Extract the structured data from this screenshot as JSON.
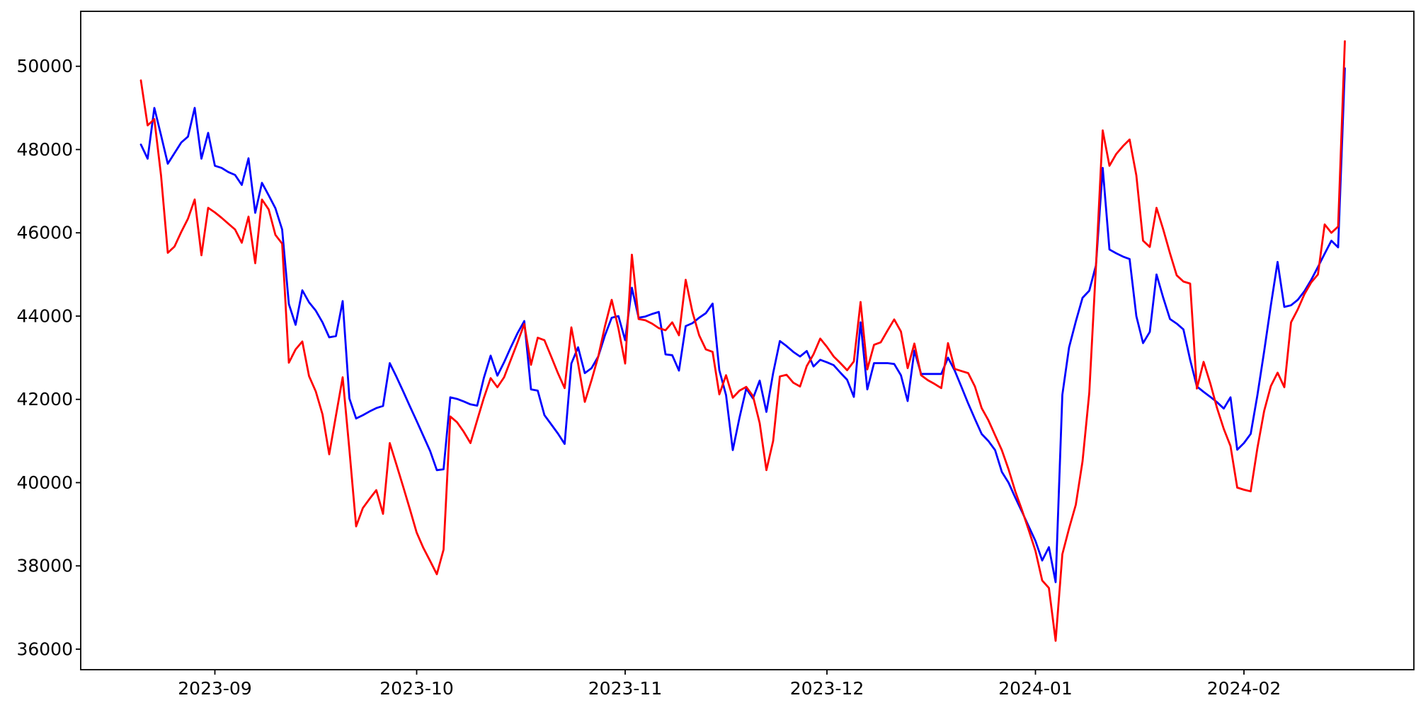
{
  "figure": {
    "background_color": "#ffffff",
    "title": "",
    "legend": "none",
    "grid": false
  },
  "chart_data": {
    "type": "line",
    "title": "",
    "xlabel": "",
    "ylabel": "",
    "x_start_date": "2023-08-21",
    "x_end_date": "2024-02-16",
    "x_step_days": 1,
    "n_points": 180,
    "x_tick_labels": [
      "2023-09",
      "2023-10",
      "2023-11",
      "2023-12",
      "2024-01",
      "2024-02"
    ],
    "y_tick_labels": [
      "36000",
      "38000",
      "40000",
      "42000",
      "44000",
      "46000",
      "48000",
      "50000"
    ],
    "y_tick_values": [
      36000,
      38000,
      40000,
      42000,
      44000,
      46000,
      48000,
      50000
    ],
    "ylim": [
      35507,
      51320
    ],
    "axis_color": "#000000",
    "series": [
      {
        "name": "blue-series",
        "color": "#0000ff",
        "values": [
          48120,
          47780,
          49000,
          48340,
          47660,
          47915,
          48170,
          48310,
          49000,
          47780,
          48400,
          47610,
          47560,
          47460,
          47390,
          47150,
          47790,
          46480,
          47200,
          46900,
          46590,
          46080,
          44290,
          43790,
          44620,
          44330,
          44130,
          43850,
          43490,
          43520,
          44360,
          42020,
          41540,
          41620,
          41710,
          41790,
          41840,
          42870,
          42540,
          42190,
          41830,
          41480,
          41120,
          40760,
          40300,
          40320,
          42050,
          42010,
          41950,
          41880,
          41850,
          42520,
          43050,
          42570,
          42890,
          43250,
          43590,
          43880,
          42240,
          42210,
          41620,
          41400,
          41180,
          40930,
          42860,
          43250,
          42630,
          42750,
          43030,
          43540,
          43960,
          44000,
          43420,
          44680,
          43960,
          43990,
          44050,
          44100,
          43080,
          43060,
          42690,
          43760,
          43830,
          43960,
          44070,
          44300,
          42700,
          42100,
          40780,
          41560,
          42260,
          42020,
          42450,
          41700,
          42630,
          43400,
          43280,
          43140,
          43030,
          43160,
          42790,
          42950,
          42890,
          42820,
          42640,
          42470,
          42060,
          43850,
          42240,
          42870,
          42870,
          42870,
          42850,
          42580,
          41960,
          43170,
          42610,
          42610,
          42610,
          42610,
          43000,
          42690,
          42300,
          41900,
          41530,
          41170,
          41000,
          40780,
          40260,
          40000,
          39640,
          39300,
          38950,
          38600,
          38130,
          38450,
          37610,
          42110,
          43250,
          43870,
          44440,
          44610,
          45220,
          47560,
          45600,
          45510,
          45430,
          45370,
          44000,
          43350,
          43620,
          45000,
          44440,
          43930,
          43820,
          43680,
          42950,
          42310,
          42180,
          42060,
          41930,
          41780,
          42050,
          40790,
          40950,
          41170,
          42100,
          43150,
          44260,
          45300,
          44220,
          44260,
          44390,
          44600,
          44870,
          45180,
          45500,
          45810,
          45650,
          49950
        ]
      },
      {
        "name": "red-series",
        "color": "#ff0000",
        "values": [
          49660,
          48580,
          48730,
          47370,
          45520,
          45670,
          46020,
          46340,
          46800,
          45460,
          46600,
          46490,
          46360,
          46220,
          46080,
          45760,
          46390,
          45270,
          46800,
          46560,
          45950,
          45740,
          42880,
          43200,
          43390,
          42560,
          42190,
          41640,
          40680,
          41610,
          42530,
          40790,
          38950,
          39390,
          39610,
          39820,
          39250,
          40950,
          40430,
          39900,
          39360,
          38800,
          38430,
          38120,
          37800,
          38390,
          41590,
          41450,
          41220,
          40950,
          41500,
          42040,
          42510,
          42290,
          42530,
          42950,
          43370,
          43810,
          42830,
          43480,
          43420,
          43030,
          42630,
          42270,
          43730,
          42860,
          41940,
          42460,
          43030,
          43760,
          44390,
          43700,
          42860,
          45475,
          43930,
          43900,
          43820,
          43710,
          43660,
          43850,
          43540,
          44870,
          44100,
          43540,
          43200,
          43140,
          42120,
          42580,
          42040,
          42210,
          42300,
          42080,
          41430,
          40300,
          41000,
          42550,
          42590,
          42400,
          42310,
          42800,
          43080,
          43460,
          43260,
          43030,
          42870,
          42700,
          42910,
          44340,
          42720,
          43310,
          43370,
          43650,
          43920,
          43630,
          42750,
          43340,
          42580,
          42460,
          42370,
          42270,
          43350,
          42730,
          42680,
          42630,
          42310,
          41790,
          41500,
          41140,
          40780,
          40320,
          39790,
          39340,
          38860,
          38360,
          37650,
          37470,
          36200,
          38280,
          38900,
          39470,
          40510,
          42150,
          45200,
          48460,
          47610,
          47890,
          48080,
          48240,
          47380,
          45810,
          45660,
          46600,
          46080,
          45510,
          44980,
          44830,
          44780,
          42260,
          42900,
          42380,
          41790,
          41290,
          40880,
          39880,
          39830,
          39790,
          40830,
          41720,
          42320,
          42640,
          42290,
          43850,
          44160,
          44530,
          44810,
          45000,
          46200,
          46000,
          46150,
          50600
        ]
      }
    ]
  }
}
